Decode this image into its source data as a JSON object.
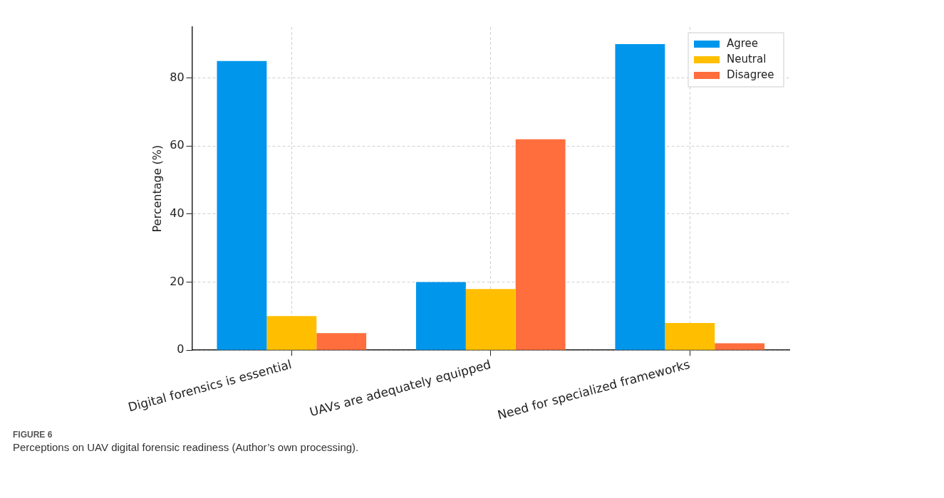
{
  "chart_data": {
    "type": "bar",
    "ylabel": "Percentage (%)",
    "categories": [
      "Digital forensics is essential",
      "UAVs are adequately equipped",
      "Need for specialized frameworks"
    ],
    "series": [
      {
        "name": "Agree",
        "color": "#0096eb",
        "values": [
          85,
          20,
          90
        ]
      },
      {
        "name": "Neutral",
        "color": "#ffbf00",
        "values": [
          10,
          18,
          8
        ]
      },
      {
        "name": "Disagree",
        "color": "#ff6e3c",
        "values": [
          5,
          62,
          2
        ]
      }
    ],
    "ylim": [
      0,
      95
    ],
    "yticks": [
      0,
      20,
      40,
      60,
      80
    ],
    "grid": true,
    "legend": "top right",
    "annotations": [
      "FIGURE 6",
      "Perceptions on UAV digital forensic readiness (Author’s own processing)."
    ]
  }
}
